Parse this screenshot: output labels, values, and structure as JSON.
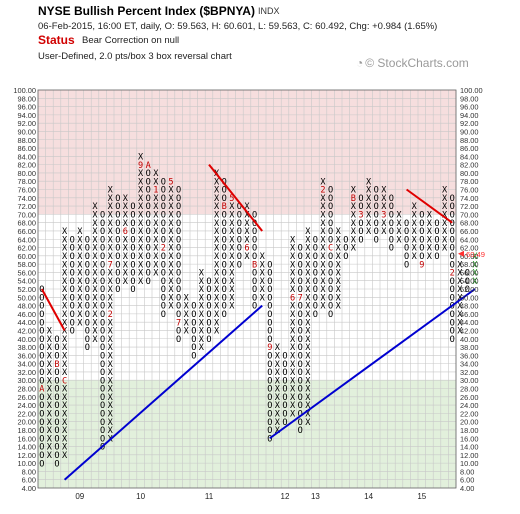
{
  "header": {
    "title": "NYSE Bullish Percent Index ($BPNYA)",
    "exchange": "INDX",
    "ohlc": "06-Feb-2015, 16:00 ET, daily, O: 59.563, H: 60.601, L: 59.563, C: 60.492, Chg: +0.984 (1.65%)",
    "status_label": "Status",
    "status_value": "Bear Correction on null",
    "description": "User-Defined, 2.0 pts/box 3 box reversal chart",
    "watermark": "© StockCharts.com"
  },
  "colors": {
    "overbought_zone": "#f6dede",
    "oversold_zone": "#e2f0dc",
    "grid": "#c8c8c8",
    "x_mark": "#000000",
    "o_mark": "#000000",
    "month_mark": "#c00000",
    "recent_x": "#1a9a1a",
    "resistance_line": "#e00000",
    "support_line": "#0000d0",
    "last_price_label": "#ff3030"
  },
  "chart_data": {
    "type": "point_and_figure",
    "box_size": 2,
    "reversal": 3,
    "ylim": [
      4,
      100
    ],
    "y_ticks": [
      "100.00",
      "98.00",
      "96.00",
      "94.00",
      "92.00",
      "90.00",
      "88.00",
      "86.00",
      "84.00",
      "82.00",
      "80.00",
      "78.00",
      "76.00",
      "74.00",
      "72.00",
      "70.00",
      "68.00",
      "66.00",
      "64.00",
      "62.00",
      "60.00",
      "58.00",
      "56.00",
      "54.00",
      "52.00",
      "50.00",
      "48.00",
      "46.00",
      "44.00",
      "42.00",
      "40.00",
      "38.00",
      "36.00",
      "34.00",
      "32.00",
      "30.00",
      "28.00",
      "26.00",
      "24.00",
      "22.00",
      "20.00",
      "18.00",
      "16.00",
      "14.00",
      "12.00",
      "10.00",
      "8.00",
      "6.00",
      "4.00"
    ],
    "overbought_threshold": 70,
    "oversold_threshold": 30,
    "last_value": 60.49,
    "last_value_label": "60.49",
    "x_labels": [
      {
        "label": "09",
        "column": 5
      },
      {
        "label": "10",
        "column": 13
      },
      {
        "label": "11",
        "column": 22
      },
      {
        "label": "12",
        "column": 32
      },
      {
        "label": "13",
        "column": 36
      },
      {
        "label": "14",
        "column": 43
      },
      {
        "label": "15",
        "column": 50
      }
    ],
    "columns": [
      {
        "type": "O",
        "from": 52,
        "to": 10
      },
      {
        "type": "X",
        "from": 12,
        "to": 42
      },
      {
        "type": "O",
        "from": 40,
        "to": 10
      },
      {
        "type": "X",
        "from": 12,
        "to": 66
      },
      {
        "type": "O",
        "from": 64,
        "to": 42
      },
      {
        "type": "X",
        "from": 44,
        "to": 66
      },
      {
        "type": "O",
        "from": 64,
        "to": 38
      },
      {
        "type": "X",
        "from": 40,
        "to": 72
      },
      {
        "type": "O",
        "from": 70,
        "to": 14
      },
      {
        "type": "X",
        "from": 16,
        "to": 76
      },
      {
        "type": "O",
        "from": 74,
        "to": 52
      },
      {
        "type": "X",
        "from": 54,
        "to": 74
      },
      {
        "type": "O",
        "from": 72,
        "to": 52
      },
      {
        "type": "X",
        "from": 54,
        "to": 84
      },
      {
        "type": "O",
        "from": 82,
        "to": 54
      },
      {
        "type": "X",
        "from": 56,
        "to": 80
      },
      {
        "type": "O",
        "from": 78,
        "to": 46
      },
      {
        "type": "X",
        "from": 48,
        "to": 78
      },
      {
        "type": "O",
        "from": 76,
        "to": 40
      },
      {
        "type": "X",
        "from": 42,
        "to": 50
      },
      {
        "type": "O",
        "from": 48,
        "to": 36
      },
      {
        "type": "X",
        "from": 38,
        "to": 56
      },
      {
        "type": "O",
        "from": 54,
        "to": 40
      },
      {
        "type": "X",
        "from": 42,
        "to": 80
      },
      {
        "type": "O",
        "from": 78,
        "to": 46
      },
      {
        "type": "X",
        "from": 48,
        "to": 74
      },
      {
        "type": "O",
        "from": 72,
        "to": 58
      },
      {
        "type": "X",
        "from": 60,
        "to": 72
      },
      {
        "type": "O",
        "from": 70,
        "to": 48
      },
      {
        "type": "X",
        "from": 50,
        "to": 60
      },
      {
        "type": "O",
        "from": 58,
        "to": 16
      },
      {
        "type": "X",
        "from": 18,
        "to": 38
      },
      {
        "type": "O",
        "from": 36,
        "to": 20
      },
      {
        "type": "X",
        "from": 22,
        "to": 64
      },
      {
        "type": "O",
        "from": 62,
        "to": 18
      },
      {
        "type": "X",
        "from": 20,
        "to": 66
      },
      {
        "type": "O",
        "from": 64,
        "to": 46
      },
      {
        "type": "X",
        "from": 48,
        "to": 78
      },
      {
        "type": "O",
        "from": 76,
        "to": 46
      },
      {
        "type": "X",
        "from": 48,
        "to": 66
      },
      {
        "type": "O",
        "from": 64,
        "to": 60
      },
      {
        "type": "X",
        "from": 62,
        "to": 76
      },
      {
        "type": "O",
        "from": 74,
        "to": 64
      },
      {
        "type": "X",
        "from": 66,
        "to": 78
      },
      {
        "type": "O",
        "from": 76,
        "to": 64
      },
      {
        "type": "X",
        "from": 66,
        "to": 76
      },
      {
        "type": "O",
        "from": 74,
        "to": 62
      },
      {
        "type": "X",
        "from": 64,
        "to": 70
      },
      {
        "type": "O",
        "from": 68,
        "to": 58
      },
      {
        "type": "X",
        "from": 60,
        "to": 72
      },
      {
        "type": "O",
        "from": 70,
        "to": 58
      },
      {
        "type": "X",
        "from": 60,
        "to": 70
      },
      {
        "type": "O",
        "from": 68,
        "to": 60
      },
      {
        "type": "X",
        "from": 62,
        "to": 76
      },
      {
        "type": "O",
        "from": 74,
        "to": 40
      },
      {
        "type": "X",
        "from": 42,
        "to": 58
      },
      {
        "type": "O",
        "from": 56,
        "to": 52
      },
      {
        "type": "X",
        "from": 54,
        "to": 60
      }
    ],
    "month_marks": [
      {
        "column": 0,
        "value": 28,
        "label": "A"
      },
      {
        "column": 2,
        "value": 34,
        "label": "B"
      },
      {
        "column": 3,
        "value": 30,
        "label": "C"
      },
      {
        "column": 7,
        "value": 24,
        "label": "3"
      },
      {
        "column": 9,
        "value": 46,
        "label": "2"
      },
      {
        "column": 9,
        "value": 58,
        "label": "7"
      },
      {
        "column": 11,
        "value": 66,
        "label": "6"
      },
      {
        "column": 13,
        "value": 82,
        "label": "9"
      },
      {
        "column": 14,
        "value": 82,
        "label": "A"
      },
      {
        "column": 15,
        "value": 76,
        "label": "1"
      },
      {
        "column": 16,
        "value": 62,
        "label": "2"
      },
      {
        "column": 17,
        "value": 78,
        "label": "5"
      },
      {
        "column": 18,
        "value": 44,
        "label": "7"
      },
      {
        "column": 22,
        "value": 62,
        "label": "A"
      },
      {
        "column": 24,
        "value": 72,
        "label": "B"
      },
      {
        "column": 25,
        "value": 74,
        "label": "5"
      },
      {
        "column": 27,
        "value": 62,
        "label": "6"
      },
      {
        "column": 28,
        "value": 58,
        "label": "B"
      },
      {
        "column": 30,
        "value": 38,
        "label": "9"
      },
      {
        "column": 32,
        "value": 76,
        "label": "4"
      },
      {
        "column": 33,
        "value": 50,
        "label": "6"
      },
      {
        "column": 34,
        "value": 50,
        "label": "7"
      },
      {
        "column": 37,
        "value": 76,
        "label": "2"
      },
      {
        "column": 38,
        "value": 62,
        "label": "C"
      },
      {
        "column": 40,
        "value": 74,
        "label": "6"
      },
      {
        "column": 41,
        "value": 74,
        "label": "B"
      },
      {
        "column": 42,
        "value": 70,
        "label": "3"
      },
      {
        "column": 45,
        "value": 70,
        "label": "3"
      },
      {
        "column": 50,
        "value": 58,
        "label": "9"
      },
      {
        "column": 51,
        "value": 56,
        "label": "A"
      },
      {
        "column": 52,
        "value": 58,
        "label": "1"
      },
      {
        "column": 54,
        "value": 56,
        "label": "2"
      }
    ],
    "trend_lines": [
      {
        "kind": "resistance",
        "from": {
          "column": 0,
          "value": 52
        },
        "to": {
          "column": 3,
          "value": 42
        }
      },
      {
        "kind": "support",
        "from": {
          "column": 3,
          "value": 6
        },
        "to": {
          "column": 29,
          "value": 48
        }
      },
      {
        "kind": "resistance",
        "from": {
          "column": 22,
          "value": 82
        },
        "to": {
          "column": 29,
          "value": 66
        }
      },
      {
        "kind": "support",
        "from": {
          "column": 30,
          "value": 16
        },
        "to": {
          "column": 57,
          "value": 52
        }
      },
      {
        "kind": "resistance",
        "from": {
          "column": 48,
          "value": 76
        },
        "to": {
          "column": 54,
          "value": 68
        }
      }
    ]
  }
}
